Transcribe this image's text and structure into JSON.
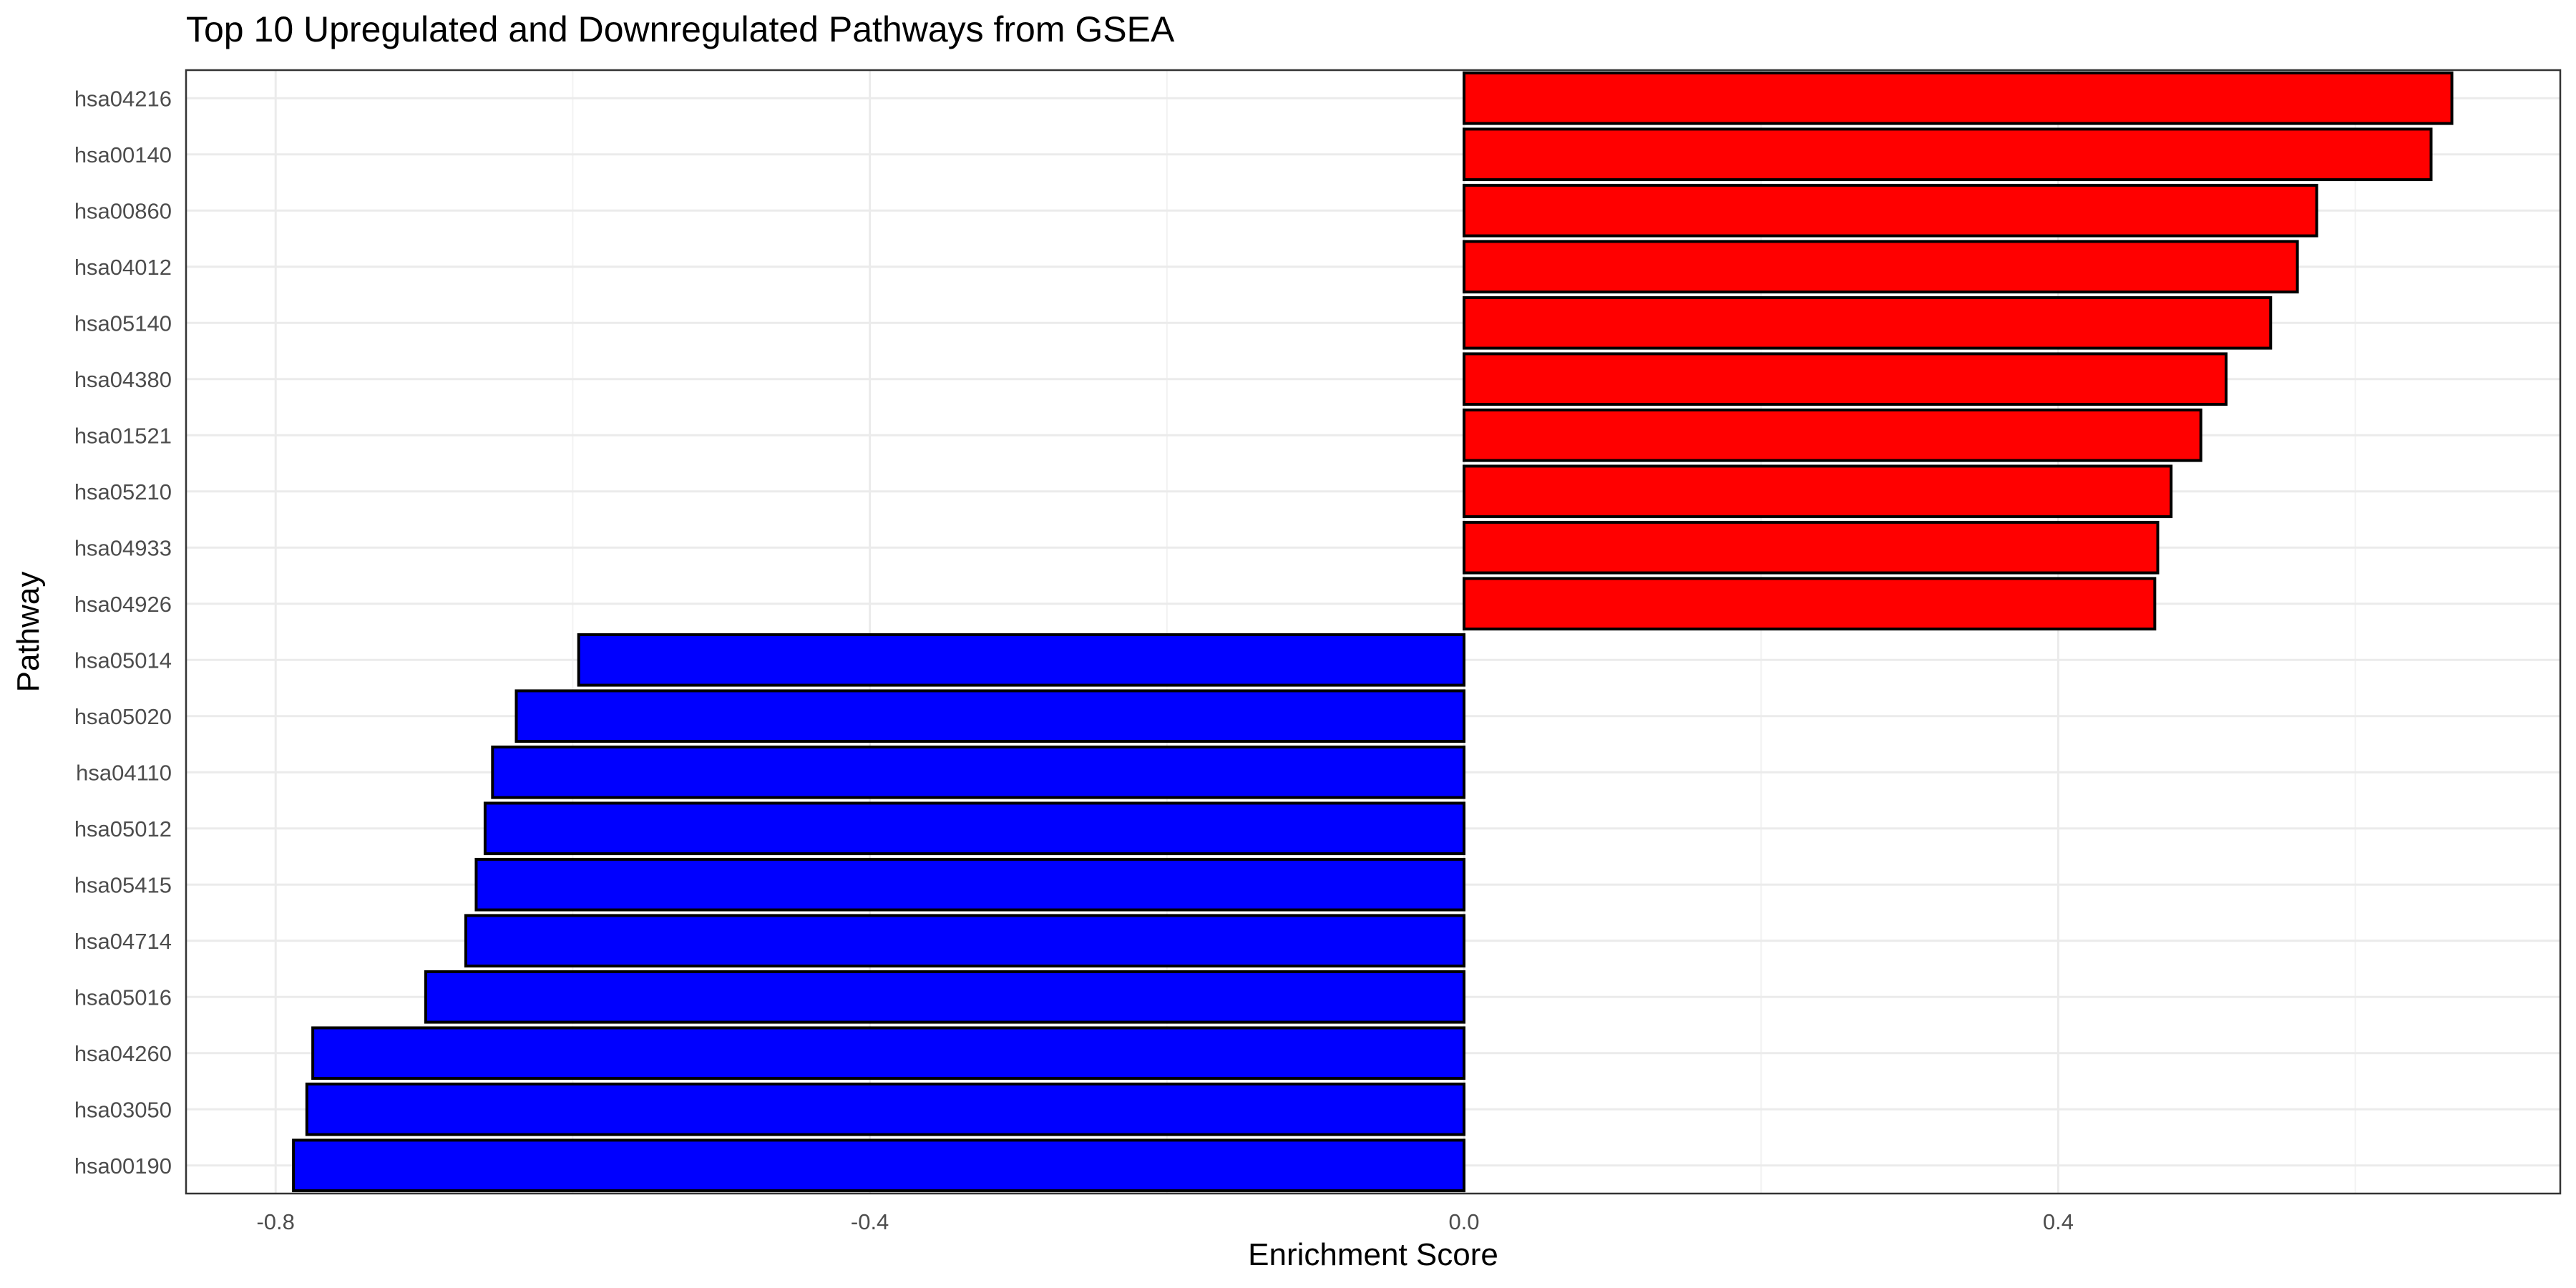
{
  "chart_data": {
    "type": "bar",
    "orientation": "horizontal",
    "title": "Top 10 Upregulated and Downregulated Pathways from GSEA",
    "xlabel": "Enrichment Score",
    "ylabel": "Pathway",
    "xlim": [
      -0.86,
      0.74
    ],
    "x_ticks": [
      -0.8,
      -0.4,
      0.0,
      0.4
    ],
    "x_tick_labels": [
      "-0.8",
      "-0.4",
      "0.0",
      "0.4"
    ],
    "grid": true,
    "legend": "none",
    "categories": [
      "hsa04216",
      "hsa00140",
      "hsa00860",
      "hsa04012",
      "hsa05140",
      "hsa04380",
      "hsa01521",
      "hsa05210",
      "hsa04933",
      "hsa04926",
      "hsa05014",
      "hsa05020",
      "hsa04110",
      "hsa05012",
      "hsa05415",
      "hsa04714",
      "hsa05016",
      "hsa04260",
      "hsa03050",
      "hsa00190"
    ],
    "values": [
      0.665,
      0.651,
      0.574,
      0.561,
      0.543,
      0.513,
      0.496,
      0.476,
      0.467,
      0.465,
      -0.596,
      -0.638,
      -0.654,
      -0.659,
      -0.665,
      -0.672,
      -0.699,
      -0.775,
      -0.779,
      -0.788
    ],
    "colors": {
      "positive": "#ff0000",
      "negative": "#0000ff",
      "outline": "#000000"
    }
  }
}
